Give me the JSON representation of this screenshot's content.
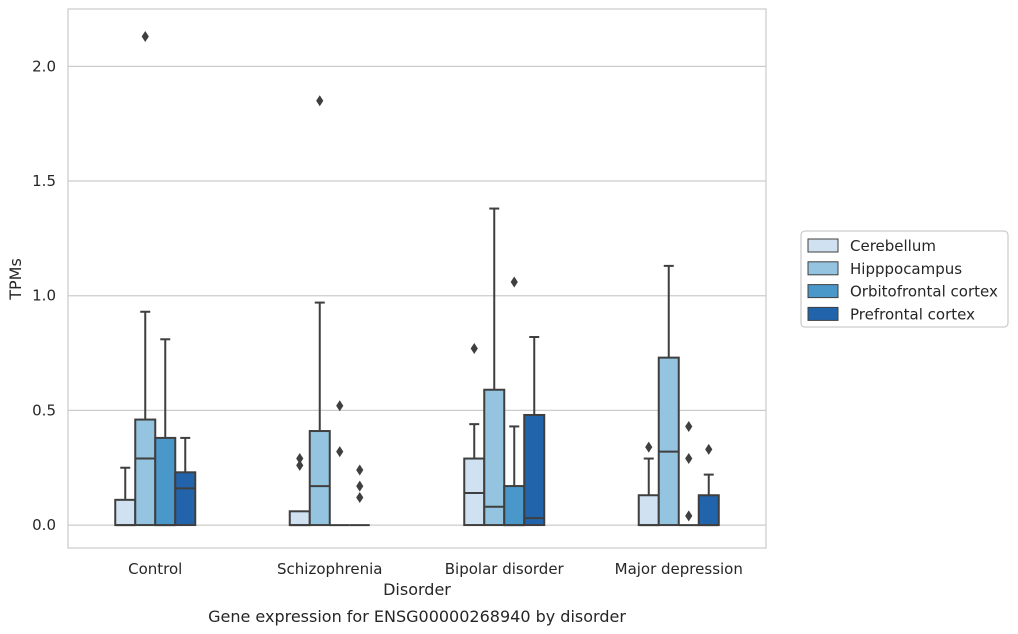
{
  "chart_data": {
    "type": "box",
    "title": "",
    "caption": "Gene expression for ENSG00000268940 by disorder",
    "xlabel": "Disorder",
    "ylabel": "TPMs",
    "ylim": [
      -0.1,
      2.25
    ],
    "yticks": [
      0.0,
      0.5,
      1.0,
      1.5,
      2.0
    ],
    "ytick_labels": [
      "0.0",
      "0.5",
      "1.0",
      "1.5",
      "2.0"
    ],
    "grid": "horizontal",
    "legend_position": "right",
    "categories": [
      "Control",
      "Schizophrenia",
      "Bipolar disorder",
      "Major depression"
    ],
    "series": [
      {
        "name": "Cerebellum",
        "color": "#d0e1f2",
        "boxes": [
          {
            "q1": 0.0,
            "median": 0.0,
            "q3": 0.11,
            "whisker_low": 0.0,
            "whisker_high": 0.25,
            "outliers": []
          },
          {
            "q1": 0.0,
            "median": 0.0,
            "q3": 0.06,
            "whisker_low": 0.0,
            "whisker_high": 0.06,
            "outliers": [
              0.26,
              0.29
            ]
          },
          {
            "q1": 0.0,
            "median": 0.14,
            "q3": 0.29,
            "whisker_low": 0.0,
            "whisker_high": 0.44,
            "outliers": [
              0.77
            ]
          },
          {
            "q1": 0.0,
            "median": 0.0,
            "q3": 0.13,
            "whisker_low": 0.0,
            "whisker_high": 0.29,
            "outliers": [
              0.34
            ]
          }
        ]
      },
      {
        "name": "Hipppocampus",
        "color": "#94c4df",
        "boxes": [
          {
            "q1": 0.0,
            "median": 0.29,
            "q3": 0.46,
            "whisker_low": 0.0,
            "whisker_high": 0.93,
            "outliers": [
              2.13
            ]
          },
          {
            "q1": 0.0,
            "median": 0.17,
            "q3": 0.41,
            "whisker_low": 0.0,
            "whisker_high": 0.97,
            "outliers": [
              1.85
            ]
          },
          {
            "q1": 0.0,
            "median": 0.08,
            "q3": 0.59,
            "whisker_low": 0.0,
            "whisker_high": 1.38,
            "outliers": []
          },
          {
            "q1": 0.0,
            "median": 0.32,
            "q3": 0.73,
            "whisker_low": 0.0,
            "whisker_high": 1.13,
            "outliers": []
          }
        ]
      },
      {
        "name": "Orbitofrontal cortex",
        "color": "#4a98c9",
        "boxes": [
          {
            "q1": 0.0,
            "median": 0.0,
            "q3": 0.38,
            "whisker_low": 0.0,
            "whisker_high": 0.81,
            "outliers": []
          },
          {
            "q1": 0.0,
            "median": 0.0,
            "q3": 0.0,
            "whisker_low": 0.0,
            "whisker_high": 0.0,
            "outliers": [
              0.32,
              0.52
            ]
          },
          {
            "q1": 0.0,
            "median": 0.0,
            "q3": 0.17,
            "whisker_low": 0.0,
            "whisker_high": 0.43,
            "outliers": [
              1.06
            ]
          },
          {
            "q1": 0.0,
            "median": 0.0,
            "q3": 0.0,
            "whisker_low": 0.0,
            "whisker_high": 0.0,
            "outliers": [
              0.04,
              0.29,
              0.43
            ]
          }
        ]
      },
      {
        "name": "Prefrontal cortex",
        "color": "#2164ab",
        "boxes": [
          {
            "q1": 0.0,
            "median": 0.16,
            "q3": 0.23,
            "whisker_low": 0.0,
            "whisker_high": 0.38,
            "outliers": []
          },
          {
            "q1": 0.0,
            "median": 0.0,
            "q3": 0.0,
            "whisker_low": 0.0,
            "whisker_high": 0.0,
            "outliers": [
              0.12,
              0.17,
              0.24
            ]
          },
          {
            "q1": 0.0,
            "median": 0.03,
            "q3": 0.48,
            "whisker_low": 0.0,
            "whisker_high": 0.82,
            "outliers": []
          },
          {
            "q1": 0.0,
            "median": 0.0,
            "q3": 0.13,
            "whisker_low": 0.0,
            "whisker_high": 0.22,
            "outliers": [
              0.33
            ]
          }
        ]
      }
    ]
  }
}
